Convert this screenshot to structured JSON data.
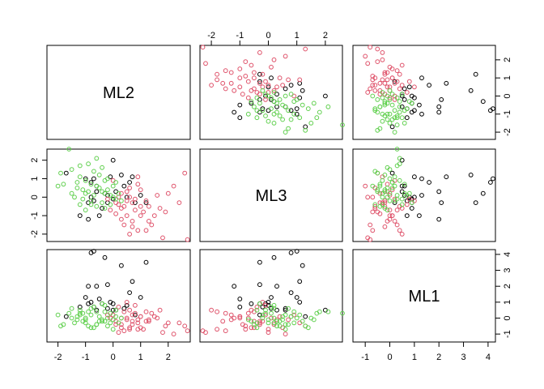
{
  "chart_data": {
    "type": "scatter",
    "plot_kind": "scatterplot-matrix",
    "variables": [
      "ML2",
      "ML3",
      "ML1"
    ],
    "group_colors": [
      "#000000",
      "#df536b",
      "#61d04f"
    ],
    "colors": {
      "group1": "#000000",
      "group2": "#e8221f",
      "group3": "#22c11a"
    },
    "ranges": {
      "ML2": [
        -2.4,
        2.8
      ],
      "ML3": [
        -2.4,
        2.6
      ],
      "ML1": [
        -1.5,
        4.3
      ]
    },
    "ticks": {
      "ML2": [
        -2,
        -1,
        0,
        1,
        2
      ],
      "ML3": [
        -2,
        -1,
        0,
        1,
        2
      ],
      "ML1": [
        -1,
        0,
        1,
        2,
        3,
        4
      ]
    },
    "tick_labels": {
      "ML2": [
        "-2",
        "-1",
        "0",
        "1",
        "2"
      ],
      "ML3": [
        "-2",
        "-1",
        "0",
        "1",
        "2"
      ],
      "ML1": [
        "-1",
        "0",
        "1",
        "2",
        "3",
        "4"
      ]
    },
    "groups": [
      {
        "points": [
          [
            -0.8,
            0.8,
            4.1
          ],
          [
            -0.7,
            1.0,
            4.2
          ],
          [
            0.0,
            2.0,
            0.5
          ],
          [
            0.3,
            1.2,
            3.3
          ],
          [
            0.6,
            0.8,
            1.6
          ],
          [
            0.7,
            1.1,
            2.3
          ],
          [
            0.5,
            0.0,
            0.8
          ],
          [
            -0.2,
            0.1,
            0.6
          ],
          [
            -0.6,
            0.3,
            2.0
          ],
          [
            -0.8,
            0.0,
            1.0
          ],
          [
            0.0,
            -0.1,
            0.9
          ],
          [
            -0.9,
            -1.2,
            2.0
          ],
          [
            -0.5,
            -1.0,
            1.2
          ],
          [
            -0.2,
            -0.3,
            2.1
          ],
          [
            1.0,
            0.1,
            1.3
          ],
          [
            -0.3,
            0.2,
            3.8
          ],
          [
            -1.0,
            1.0,
            1.3
          ],
          [
            -0.4,
            -0.6,
            0.9
          ],
          [
            0.1,
            0.3,
            0.5
          ],
          [
            1.2,
            -0.3,
            3.5
          ],
          [
            -1.7,
            1.3,
            0.1
          ],
          [
            0.8,
            -0.3,
            0.2
          ],
          [
            0.4,
            0.6,
            0.6
          ],
          [
            -0.9,
            -0.3,
            0.9
          ],
          [
            -0.7,
            -0.2,
            0.7
          ],
          [
            -0.6,
            0.6,
            0.5
          ],
          [
            -1.2,
            -1.0,
            0.7
          ],
          [
            -0.1,
            1.1,
            1.0
          ]
        ]
      },
      {
        "points": [
          [
            2.6,
            1.3,
            -0.5
          ],
          [
            2.0,
            0.2,
            -0.3
          ],
          [
            1.7,
            -0.6,
            0.5
          ],
          [
            1.3,
            -0.5,
            -0.2
          ],
          [
            1.0,
            -1.0,
            0.1
          ],
          [
            0.9,
            -1.8,
            -0.7
          ],
          [
            0.7,
            -1.3,
            0.2
          ],
          [
            0.5,
            0.3,
            -0.1
          ],
          [
            0.4,
            -0.5,
            0.4
          ],
          [
            0.3,
            -1.2,
            0.0
          ],
          [
            0.2,
            -0.4,
            0.7
          ],
          [
            0.1,
            -0.9,
            -0.4
          ],
          [
            0.0,
            0.9,
            0.2
          ],
          [
            0.6,
            0.5,
            -0.6
          ],
          [
            0.8,
            -0.1,
            0.8
          ],
          [
            1.1,
            -0.8,
            -0.7
          ],
          [
            1.4,
            -1.5,
            0.3
          ],
          [
            1.8,
            -2.2,
            -0.9
          ],
          [
            2.2,
            0.6,
            -1.0
          ],
          [
            2.7,
            -2.3,
            -0.8
          ],
          [
            0.3,
            -0.6,
            -0.6
          ],
          [
            0.5,
            -1.0,
            0.0
          ],
          [
            0.7,
            -0.3,
            -0.4
          ],
          [
            1.0,
            0.4,
            0.1
          ],
          [
            1.2,
            -0.2,
            -0.2
          ],
          [
            0.6,
            -2.0,
            0.5
          ],
          [
            0.9,
            1.1,
            -0.3
          ],
          [
            1.5,
            -1.0,
            0.1
          ],
          [
            1.9,
            -0.8,
            -0.5
          ],
          [
            2.4,
            -0.3,
            -0.3
          ],
          [
            0.2,
            0.0,
            -0.9
          ],
          [
            0.4,
            -1.5,
            -0.8
          ],
          [
            0.8,
            -0.7,
            0.3
          ],
          [
            1.3,
            -1.3,
            -0.1
          ],
          [
            1.6,
            0.1,
            0.0
          ],
          [
            0.1,
            -0.3,
            -0.2
          ],
          [
            0.5,
            -0.2,
            1.0
          ],
          [
            0.7,
            -1.6,
            -0.2
          ],
          [
            -0.2,
            -0.1,
            0.2
          ],
          [
            0.3,
            0.2,
            -0.4
          ],
          [
            1.0,
            -0.5,
            -0.6
          ],
          [
            1.2,
            -1.8,
            0.4
          ],
          [
            0.9,
            0.7,
            -0.1
          ],
          [
            -0.1,
            -0.7,
            0.0
          ],
          [
            0.6,
            0.0,
            -0.7
          ]
        ]
      },
      {
        "points": [
          [
            -1.6,
            2.6,
            0.3
          ],
          [
            -1.9,
            1.3,
            -0.5
          ],
          [
            -1.5,
            1.5,
            0.0
          ],
          [
            -1.2,
            1.1,
            0.2
          ],
          [
            -1.0,
            0.9,
            -0.3
          ],
          [
            -0.8,
            0.7,
            0.6
          ],
          [
            -0.6,
            0.6,
            -0.4
          ],
          [
            -0.5,
            0.5,
            0.1
          ],
          [
            -0.4,
            0.3,
            -0.2
          ],
          [
            -0.3,
            0.2,
            0.8
          ],
          [
            -0.2,
            0.4,
            -0.5
          ],
          [
            -0.1,
            0.1,
            0.3
          ],
          [
            0.0,
            0.0,
            -0.1
          ],
          [
            0.1,
            -0.1,
            0.5
          ],
          [
            0.2,
            0.2,
            -0.3
          ],
          [
            0.3,
            -0.2,
            0.0
          ],
          [
            -0.7,
            1.4,
            -0.6
          ],
          [
            -0.9,
            1.8,
            0.4
          ],
          [
            -1.1,
            0.4,
            -0.2
          ],
          [
            -1.3,
            0.8,
            0.1
          ],
          [
            -0.4,
            -0.3,
            0.9
          ],
          [
            -0.6,
            -0.5,
            -0.4
          ],
          [
            -0.8,
            -0.2,
            0.2
          ],
          [
            -1.0,
            -0.7,
            -0.1
          ],
          [
            -1.2,
            -0.4,
            0.5
          ],
          [
            -1.4,
            0.0,
            -0.3
          ],
          [
            -0.2,
            1.0,
            0.0
          ],
          [
            0.0,
            0.6,
            -0.7
          ],
          [
            -0.3,
            0.9,
            0.4
          ],
          [
            -0.5,
            1.2,
            -0.2
          ],
          [
            -0.7,
            0.1,
            0.7
          ],
          [
            -0.9,
            0.3,
            -0.5
          ],
          [
            -1.1,
            -0.1,
            0.3
          ],
          [
            -1.3,
            0.5,
            -0.1
          ],
          [
            -1.5,
            0.2,
            0.6
          ],
          [
            -1.8,
            0.7,
            -0.4
          ],
          [
            -2.0,
            0.6,
            0.2
          ],
          [
            -0.1,
            -0.4,
            -0.3
          ],
          [
            0.1,
            0.8,
            0.1
          ],
          [
            -0.4,
            1.6,
            -0.1
          ],
          [
            -0.6,
            2.1,
            0.4
          ],
          [
            -0.8,
            -0.4,
            -0.6
          ],
          [
            -1.0,
            0.2,
            0.0
          ],
          [
            -1.2,
            1.7,
            0.3
          ],
          [
            -0.3,
            -0.6,
            -0.2
          ]
        ]
      }
    ]
  }
}
